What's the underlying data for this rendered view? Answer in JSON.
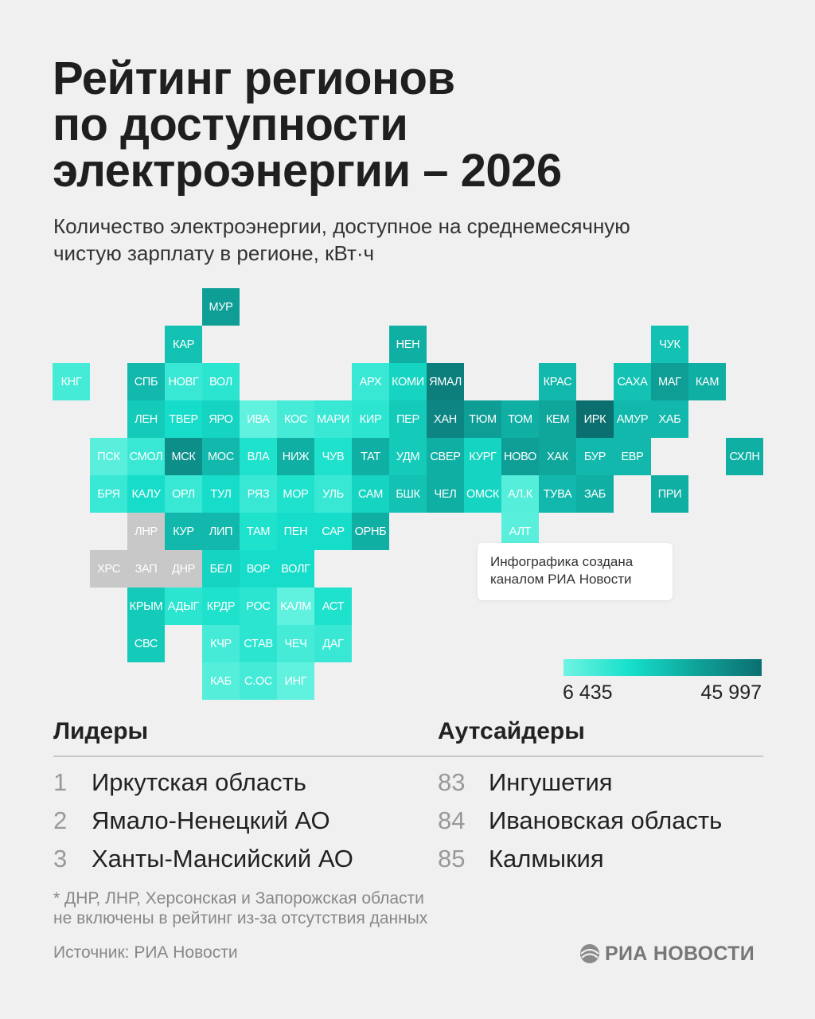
{
  "header": {
    "title_lines": [
      "Рейтинг регионов",
      "по доступности",
      "электроэнергии – 2026"
    ],
    "subtitle_lines": [
      "Количество электроэнергии, доступное на среднемесячную",
      "чистую зарплату в регионе, кВт·ч"
    ]
  },
  "note": {
    "lines": [
      "Инфографика создана",
      "каналом РИА Новости"
    ]
  },
  "colors": {
    "no_data": "#c8c8c8",
    "scale": [
      "#6ef4e2",
      "#16e0cb",
      "#0fa39a",
      "#0b6f70"
    ]
  },
  "chart_data": {
    "type": "heatmap",
    "title": "Рейтинг регионов по доступности электроэнергии – 2026",
    "unit": "кВт·ч",
    "scale_min": 6435,
    "scale_max": 45997,
    "legend": {
      "min_label": "6 435",
      "max_label": "45 997",
      "placement": "bottom-right"
    },
    "cells": [
      {
        "label": "МУР",
        "col": 5,
        "row": 0,
        "level": 0.7
      },
      {
        "label": "КАР",
        "col": 4,
        "row": 1,
        "level": 0.5
      },
      {
        "label": "НЕН",
        "col": 10,
        "row": 1,
        "level": 0.6
      },
      {
        "label": "ЧУК",
        "col": 17,
        "row": 1,
        "level": 0.5
      },
      {
        "label": "КНГ",
        "col": 1,
        "row": 2,
        "level": 0.15
      },
      {
        "label": "СПБ",
        "col": 3,
        "row": 2,
        "level": 0.55
      },
      {
        "label": "НОВГ",
        "col": 4,
        "row": 2,
        "level": 0.2
      },
      {
        "label": "ВОЛ",
        "col": 5,
        "row": 2,
        "level": 0.25
      },
      {
        "label": "АРХ",
        "col": 9,
        "row": 2,
        "level": 0.2
      },
      {
        "label": "КОМИ",
        "col": 10,
        "row": 2,
        "level": 0.4
      },
      {
        "label": "ЯМАЛ",
        "col": 11,
        "row": 2,
        "level": 0.9
      },
      {
        "label": "КРАС",
        "col": 14,
        "row": 2,
        "level": 0.55
      },
      {
        "label": "САХА",
        "col": 16,
        "row": 2,
        "level": 0.5
      },
      {
        "label": "МАГ",
        "col": 17,
        "row": 2,
        "level": 0.7
      },
      {
        "label": "КАМ",
        "col": 18,
        "row": 2,
        "level": 0.6
      },
      {
        "label": "ЛЕН",
        "col": 3,
        "row": 3,
        "level": 0.45
      },
      {
        "label": "ТВЕР",
        "col": 4,
        "row": 3,
        "level": 0.35
      },
      {
        "label": "ЯРО",
        "col": 5,
        "row": 3,
        "level": 0.4
      },
      {
        "label": "ИВА",
        "col": 6,
        "row": 3,
        "level": 0.05
      },
      {
        "label": "КОС",
        "col": 7,
        "row": 3,
        "level": 0.15
      },
      {
        "label": "МАРИ",
        "col": 8,
        "row": 3,
        "level": 0.2
      },
      {
        "label": "КИР",
        "col": 9,
        "row": 3,
        "level": 0.25
      },
      {
        "label": "ПЕР",
        "col": 10,
        "row": 3,
        "level": 0.45
      },
      {
        "label": "ХАН",
        "col": 11,
        "row": 3,
        "level": 0.85
      },
      {
        "label": "ТЮМ",
        "col": 12,
        "row": 3,
        "level": 0.7
      },
      {
        "label": "ТОМ",
        "col": 13,
        "row": 3,
        "level": 0.6
      },
      {
        "label": "КЕМ",
        "col": 14,
        "row": 3,
        "level": 0.65
      },
      {
        "label": "ИРК",
        "col": 15,
        "row": 3,
        "level": 1.0
      },
      {
        "label": "АМУР",
        "col": 16,
        "row": 3,
        "level": 0.55
      },
      {
        "label": "ХАБ",
        "col": 17,
        "row": 3,
        "level": 0.55
      },
      {
        "label": "ПСК",
        "col": 2,
        "row": 4,
        "level": 0.08
      },
      {
        "label": "СМОЛ",
        "col": 3,
        "row": 4,
        "level": 0.2
      },
      {
        "label": "МСК",
        "col": 4,
        "row": 4,
        "level": 0.8
      },
      {
        "label": "МОС",
        "col": 5,
        "row": 4,
        "level": 0.55
      },
      {
        "label": "ВЛА",
        "col": 6,
        "row": 4,
        "level": 0.3
      },
      {
        "label": "НИЖ",
        "col": 7,
        "row": 4,
        "level": 0.6
      },
      {
        "label": "ЧУВ",
        "col": 8,
        "row": 4,
        "level": 0.3
      },
      {
        "label": "ТАТ",
        "col": 9,
        "row": 4,
        "level": 0.6
      },
      {
        "label": "УДМ",
        "col": 10,
        "row": 4,
        "level": 0.45
      },
      {
        "label": "СВЕР",
        "col": 11,
        "row": 4,
        "level": 0.6
      },
      {
        "label": "КУРГ",
        "col": 12,
        "row": 4,
        "level": 0.4
      },
      {
        "label": "НОВО",
        "col": 13,
        "row": 4,
        "level": 0.7
      },
      {
        "label": "ХАК",
        "col": 14,
        "row": 4,
        "level": 0.65
      },
      {
        "label": "БУР",
        "col": 15,
        "row": 4,
        "level": 0.55
      },
      {
        "label": "ЕВР",
        "col": 16,
        "row": 4,
        "level": 0.55
      },
      {
        "label": "СХЛН",
        "col": 19,
        "row": 4,
        "level": 0.6
      },
      {
        "label": "БРЯ",
        "col": 2,
        "row": 5,
        "level": 0.2
      },
      {
        "label": "КАЛУ",
        "col": 3,
        "row": 5,
        "level": 0.35
      },
      {
        "label": "ОРЛ",
        "col": 4,
        "row": 5,
        "level": 0.2
      },
      {
        "label": "ТУЛ",
        "col": 5,
        "row": 5,
        "level": 0.35
      },
      {
        "label": "РЯЗ",
        "col": 6,
        "row": 5,
        "level": 0.2
      },
      {
        "label": "МОР",
        "col": 7,
        "row": 5,
        "level": 0.3
      },
      {
        "label": "УЛЬ",
        "col": 8,
        "row": 5,
        "level": 0.2
      },
      {
        "label": "САМ",
        "col": 9,
        "row": 5,
        "level": 0.4
      },
      {
        "label": "БШК",
        "col": 10,
        "row": 5,
        "level": 0.5
      },
      {
        "label": "ЧЕЛ",
        "col": 11,
        "row": 5,
        "level": 0.6
      },
      {
        "label": "ОМСК",
        "col": 12,
        "row": 5,
        "level": 0.4
      },
      {
        "label": "АЛ.К",
        "col": 13,
        "row": 5,
        "level": 0.1
      },
      {
        "label": "ТУВА",
        "col": 14,
        "row": 5,
        "level": 0.55
      },
      {
        "label": "ЗАБ",
        "col": 15,
        "row": 5,
        "level": 0.6
      },
      {
        "label": "ПРИ",
        "col": 17,
        "row": 5,
        "level": 0.6
      },
      {
        "label": "ЛНР",
        "col": 3,
        "row": 6,
        "level": null
      },
      {
        "label": "КУР",
        "col": 4,
        "row": 6,
        "level": 0.55
      },
      {
        "label": "ЛИП",
        "col": 5,
        "row": 6,
        "level": 0.55
      },
      {
        "label": "ТАМ",
        "col": 6,
        "row": 6,
        "level": 0.3
      },
      {
        "label": "ПЕН",
        "col": 7,
        "row": 6,
        "level": 0.35
      },
      {
        "label": "САР",
        "col": 8,
        "row": 6,
        "level": 0.35
      },
      {
        "label": "ОРНБ",
        "col": 9,
        "row": 6,
        "level": 0.6
      },
      {
        "label": "АЛТ",
        "col": 13,
        "row": 6,
        "level": 0.08
      },
      {
        "label": "ХРС",
        "col": 2,
        "row": 7,
        "level": null
      },
      {
        "label": "ЗАП",
        "col": 3,
        "row": 7,
        "level": null
      },
      {
        "label": "ДНР",
        "col": 4,
        "row": 7,
        "level": null
      },
      {
        "label": "БЕЛ",
        "col": 5,
        "row": 7,
        "level": 0.4
      },
      {
        "label": "ВОР",
        "col": 6,
        "row": 7,
        "level": 0.35
      },
      {
        "label": "ВОЛГ",
        "col": 7,
        "row": 7,
        "level": 0.35
      },
      {
        "label": "КРЫМ",
        "col": 3,
        "row": 8,
        "level": 0.45
      },
      {
        "label": "АДЫГ",
        "col": 4,
        "row": 8,
        "level": 0.25
      },
      {
        "label": "КРДР",
        "col": 5,
        "row": 8,
        "level": 0.3
      },
      {
        "label": "РОС",
        "col": 6,
        "row": 8,
        "level": 0.25
      },
      {
        "label": "КАЛМ",
        "col": 7,
        "row": 8,
        "level": 0.05
      },
      {
        "label": "АСТ",
        "col": 8,
        "row": 8,
        "level": 0.3
      },
      {
        "label": "СВС",
        "col": 3,
        "row": 9,
        "level": 0.45
      },
      {
        "label": "КЧР",
        "col": 5,
        "row": 9,
        "level": 0.15
      },
      {
        "label": "СТАВ",
        "col": 6,
        "row": 9,
        "level": 0.25
      },
      {
        "label": "ЧЕЧ",
        "col": 7,
        "row": 9,
        "level": 0.15
      },
      {
        "label": "ДАГ",
        "col": 8,
        "row": 9,
        "level": 0.2
      },
      {
        "label": "КАБ",
        "col": 5,
        "row": 10,
        "level": 0.1
      },
      {
        "label": "С.ОС",
        "col": 6,
        "row": 10,
        "level": 0.15
      },
      {
        "label": "ИНГ",
        "col": 7,
        "row": 10,
        "level": 0.05
      }
    ]
  },
  "leaders": {
    "heading": "Лидеры",
    "items": [
      {
        "rank": "1",
        "name": "Иркутская область"
      },
      {
        "rank": "2",
        "name": "Ямало-Ненецкий АО"
      },
      {
        "rank": "3",
        "name": "Ханты-Мансийский АО"
      }
    ]
  },
  "outsiders": {
    "heading": "Аутсайдеры",
    "items": [
      {
        "rank": "83",
        "name": "Ингушетия"
      },
      {
        "rank": "84",
        "name": "Ивановская область"
      },
      {
        "rank": "85",
        "name": "Калмыкия"
      }
    ]
  },
  "footnote_lines": [
    "* ДНР, ЛНР, Херсонская и Запорожская области",
    "не включены в рейтинг из-за отсутствия данных"
  ],
  "source": "Источник: РИА Новости",
  "logo": {
    "text": "РИА НОВОСТИ",
    "icon": "ria-globe-icon"
  }
}
